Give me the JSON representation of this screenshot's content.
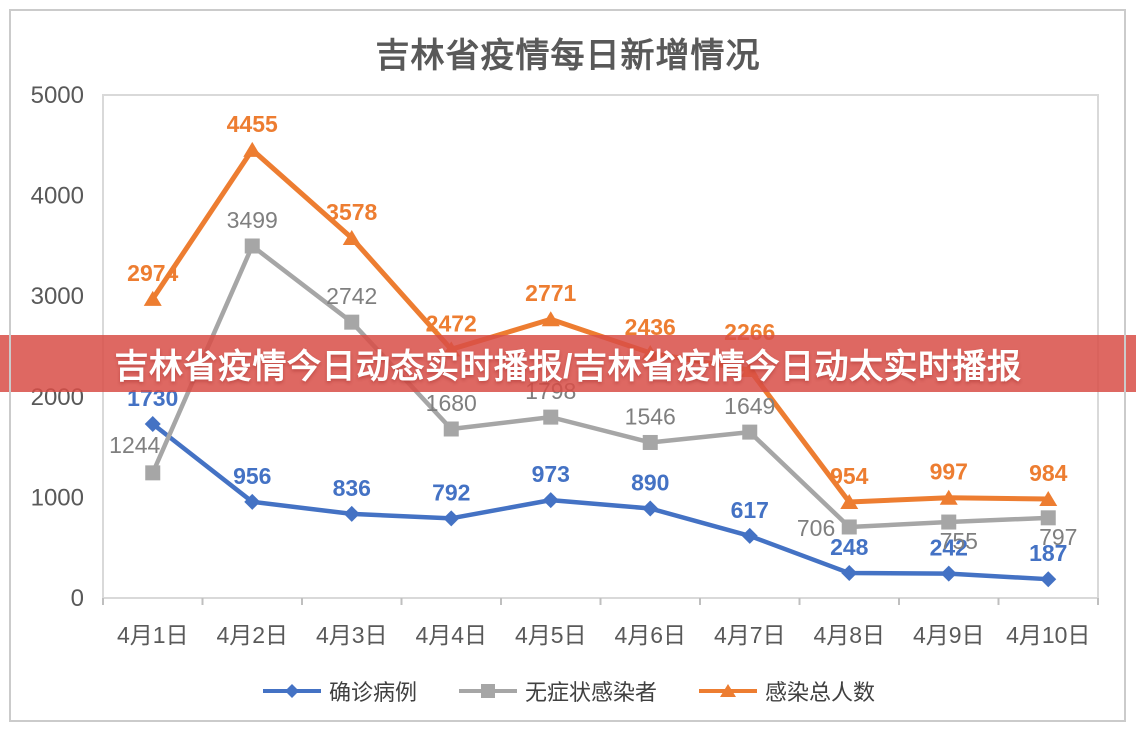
{
  "page": {
    "background": "#FFFFFF",
    "frame_border_color": "#CBCBCB"
  },
  "title": {
    "text": "吉林省疫情每日新增情况",
    "color": "#595959"
  },
  "banner": {
    "text": "吉林省疫情今日动态实时播报/吉林省疫情今日动太实时播报",
    "bg_rgb": "216,77,71",
    "bg_opacity": 0.85,
    "text_color": "#FFFFFF"
  },
  "chart_data": {
    "type": "line",
    "title": "吉林省疫情每日新增情况",
    "categories": [
      "4月1日",
      "4月2日",
      "4月3日",
      "4月4日",
      "4月5日",
      "4月6日",
      "4月7日",
      "4月8日",
      "4月9日",
      "4月10日"
    ],
    "series": [
      {
        "id": "confirmed-cases",
        "name": "确诊病例",
        "color": "#4472C4",
        "marker": "diamond",
        "line_width": 4.5,
        "label_color": "#4472C4",
        "label_bold": true,
        "values": [
          1730,
          956,
          836,
          792,
          973,
          890,
          617,
          248,
          242,
          187
        ],
        "label_positions": [
          "above",
          "above",
          "above",
          "above",
          "above",
          "above",
          "above",
          "above",
          "above",
          "above"
        ]
      },
      {
        "id": "asymptomatic-infections",
        "name": "无症状感染者",
        "color": "#A6A6A6",
        "marker": "square",
        "line_width": 4.5,
        "label_color": "#7F7F7F",
        "label_bold": false,
        "values": [
          1244,
          3499,
          2742,
          1680,
          1798,
          1546,
          1649,
          706,
          755,
          797
        ],
        "label_positions": [
          "above-left",
          "above",
          "above",
          "above",
          "above",
          "above",
          "above",
          "left",
          "below",
          "below"
        ]
      },
      {
        "id": "total-infected",
        "name": "感染总人数",
        "color": "#ED7D31",
        "marker": "triangle",
        "line_width": 5,
        "label_color": "#ED7D31",
        "label_bold": true,
        "values": [
          2974,
          4455,
          3578,
          2472,
          2771,
          2436,
          2266,
          954,
          997,
          984
        ],
        "label_positions": [
          "above",
          "above",
          "above",
          "above",
          "above",
          "above",
          "above-far",
          "above",
          "above",
          "above"
        ]
      }
    ],
    "ylim": [
      0,
      5000
    ],
    "y_ticks": [
      0,
      1000,
      2000,
      3000,
      4000,
      5000
    ],
    "axis_text_color": "#595959",
    "plot_border_color": "#D9D9D9",
    "tick_color": "#BFBFBF",
    "grid": "plot-border-only",
    "legend_position": "bottom-center"
  }
}
